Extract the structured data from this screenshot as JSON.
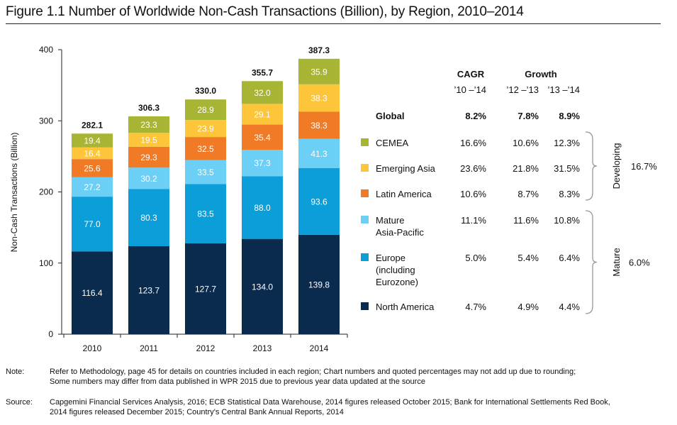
{
  "title": "Figure 1.1 Number of Worldwide Non-Cash Transactions (Billion), by Region, 2010–2014",
  "chart_data": {
    "type": "bar",
    "stacked": true,
    "ylabel": "Non-Cash Transactions (Billion)",
    "ylim": [
      0,
      400
    ],
    "yticks": [
      "0",
      "100",
      "200",
      "300",
      "400"
    ],
    "categories": [
      "2010",
      "2011",
      "2012",
      "2013",
      "2014"
    ],
    "totals": [
      "282.1",
      "306.3",
      "330.0",
      "355.7",
      "387.3"
    ],
    "series": [
      {
        "name": "North America",
        "color": "#0a2a4e",
        "values": [
          116.4,
          123.7,
          127.7,
          134.0,
          139.8
        ],
        "labels": [
          "116.4",
          "123.7",
          "127.7",
          "134.0",
          "139.8"
        ]
      },
      {
        "name": "Europe (including Eurozone)",
        "color": "#0b9ed8",
        "values": [
          77.0,
          80.3,
          83.5,
          88.0,
          93.6
        ],
        "labels": [
          "77.0",
          "80.3",
          "83.5",
          "88.0",
          "93.6"
        ]
      },
      {
        "name": "Mature Asia-Pacific",
        "color": "#6ccff6",
        "values": [
          27.2,
          30.2,
          33.5,
          37.3,
          41.3
        ],
        "labels": [
          "27.2",
          "30.2",
          "33.5",
          "37.3",
          "41.3"
        ]
      },
      {
        "name": "Latin America",
        "color": "#f07a26",
        "values": [
          25.6,
          29.3,
          32.5,
          35.4,
          38.3
        ],
        "labels": [
          "25.6",
          "29.3",
          "32.5",
          "35.4",
          "38.3"
        ]
      },
      {
        "name": "Emerging Asia",
        "color": "#fdc63a",
        "values": [
          16.4,
          19.5,
          23.9,
          29.1,
          38.3
        ],
        "labels": [
          "16.4",
          "19.5",
          "23.9",
          "29.1",
          "38.3"
        ]
      },
      {
        "name": "CEMEA",
        "color": "#a8b534",
        "values": [
          19.4,
          23.3,
          28.9,
          32.0,
          35.9
        ],
        "labels": [
          "19.4",
          "23.3",
          "28.9",
          "32.0",
          "35.9"
        ]
      }
    ],
    "grid": false,
    "legend_position": "right"
  },
  "table": {
    "header_cagr": "CAGR",
    "header_growth": "Growth",
    "sub_cagr": "’10 –’14",
    "sub_g1": "’12 –’13",
    "sub_g2": "’13 –’14",
    "rows": [
      {
        "label": "Global",
        "lines": [
          "Global"
        ],
        "cagr": "8.2%",
        "g1": "7.8%",
        "g2": "8.9%",
        "bold": true,
        "swatch": ""
      },
      {
        "label": "CEMEA",
        "lines": [
          "CEMEA"
        ],
        "cagr": "16.6%",
        "g1": "10.6%",
        "g2": "12.3%",
        "swatch": "#a8b534"
      },
      {
        "label": "Emerging Asia",
        "lines": [
          "Emerging Asia"
        ],
        "cagr": "23.6%",
        "g1": "21.8%",
        "g2": "31.5%",
        "swatch": "#fdc63a"
      },
      {
        "label": "Latin America",
        "lines": [
          "Latin America"
        ],
        "cagr": "10.6%",
        "g1": "8.7%",
        "g2": "8.3%",
        "swatch": "#f07a26"
      },
      {
        "label": "Mature Asia-Pacific",
        "lines": [
          "Mature",
          "Asia-Pacific"
        ],
        "cagr": "11.1%",
        "g1": "11.6%",
        "g2": "10.8%",
        "swatch": "#6ccff6"
      },
      {
        "label": "Europe (including Eurozone)",
        "lines": [
          "Europe",
          "(including",
          "Eurozone)"
        ],
        "cagr": "5.0%",
        "g1": "5.4%",
        "g2": "6.4%",
        "swatch": "#0b9ed8"
      },
      {
        "label": "North America",
        "lines": [
          "North America"
        ],
        "cagr": "4.7%",
        "g1": "4.9%",
        "g2": "4.4%",
        "swatch": "#0a2a4e"
      }
    ],
    "groups": [
      {
        "name": "Developing",
        "value": "16.7%"
      },
      {
        "name": "Mature",
        "value": "6.0%"
      }
    ]
  },
  "note_label": "Note:",
  "note_line1": "Refer to Methodology, page 45 for details on countries included in each region; Chart numbers and quoted percentages may not add up due to rounding;",
  "note_line2": "Some numbers may differ from data published in WPR 2015 due to previous year data updated at the source",
  "source_label": "Source:",
  "source_line1": "Capgemini Financial Services Analysis, 2016; ECB Statistical Data Warehouse, 2014 figures released October 2015; Bank for International Settlements Red Book,",
  "source_line2": "2014 figures released December 2015; Country's Central Bank Annual Reports, 2014"
}
